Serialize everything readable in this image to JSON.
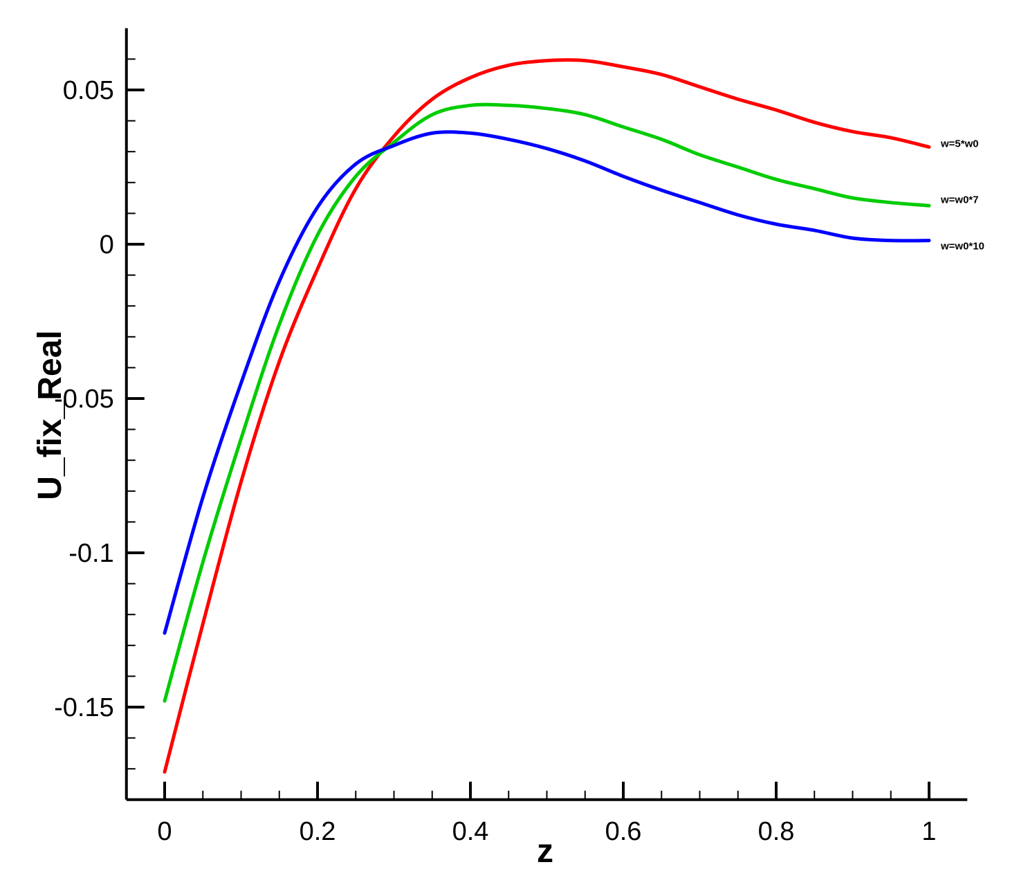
{
  "chart_data": {
    "type": "line",
    "xlabel": "z",
    "ylabel": "U_fix_Real",
    "xlim": [
      -0.05,
      1.05
    ],
    "ylim": [
      -0.18,
      0.07
    ],
    "x_ticks": [
      0,
      0.2,
      0.4,
      0.6,
      0.8,
      1
    ],
    "x_tick_labels": [
      "0",
      "0.2",
      "0.4",
      "0.6",
      "0.8",
      "1"
    ],
    "y_ticks": [
      -0.15,
      -0.1,
      -0.05,
      0,
      0.05
    ],
    "y_tick_labels": [
      "-0.15",
      "-0.1",
      "-0.05",
      "0",
      "0.05"
    ],
    "grid": false,
    "legend": "inline labels at right end of each curve",
    "series": [
      {
        "name": "w=5*w0",
        "color": "#ff0000",
        "x": [
          0,
          0.05,
          0.1,
          0.15,
          0.2,
          0.25,
          0.3,
          0.35,
          0.4,
          0.45,
          0.5,
          0.55,
          0.6,
          0.65,
          0.7,
          0.75,
          0.8,
          0.85,
          0.9,
          0.95,
          1.0
        ],
        "y": [
          -0.171,
          -0.123,
          -0.077,
          -0.038,
          -0.008,
          0.018,
          0.035,
          0.047,
          0.054,
          0.058,
          0.0595,
          0.0595,
          0.0575,
          0.055,
          0.051,
          0.047,
          0.0435,
          0.0395,
          0.0365,
          0.0345,
          0.0315
        ]
      },
      {
        "name": "w=w0*7",
        "color": "#00cc00",
        "x": [
          0,
          0.05,
          0.1,
          0.15,
          0.2,
          0.25,
          0.3,
          0.35,
          0.4,
          0.45,
          0.5,
          0.55,
          0.6,
          0.65,
          0.7,
          0.75,
          0.8,
          0.85,
          0.9,
          0.95,
          1.0
        ],
        "y": [
          -0.148,
          -0.103,
          -0.063,
          -0.026,
          0.003,
          0.022,
          0.033,
          0.042,
          0.045,
          0.045,
          0.044,
          0.042,
          0.038,
          0.034,
          0.029,
          0.025,
          0.021,
          0.018,
          0.015,
          0.0135,
          0.0125
        ]
      },
      {
        "name": "w=w0*10",
        "color": "#0000ff",
        "x": [
          0,
          0.05,
          0.1,
          0.15,
          0.2,
          0.25,
          0.3,
          0.35,
          0.4,
          0.45,
          0.5,
          0.55,
          0.6,
          0.65,
          0.7,
          0.75,
          0.8,
          0.85,
          0.9,
          0.95,
          1.0
        ],
        "y": [
          -0.126,
          -0.082,
          -0.045,
          -0.012,
          0.012,
          0.026,
          0.032,
          0.036,
          0.036,
          0.034,
          0.031,
          0.027,
          0.022,
          0.0175,
          0.0135,
          0.0095,
          0.0065,
          0.0045,
          0.002,
          0.0012,
          0.0012
        ]
      }
    ]
  }
}
